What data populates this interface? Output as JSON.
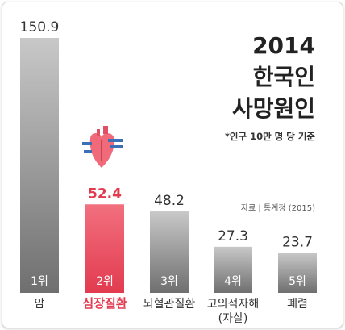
{
  "title_lines": [
    "2014",
    "한국인",
    "사망원인"
  ],
  "subtitle": "*인구 10만 명 당 기준",
  "source": "자료 | 통계청 (2015)",
  "chart_data": {
    "type": "bar",
    "title": "2014 한국인 사망원인",
    "subtitle": "*인구 10만 명 당 기준",
    "source": "자료 | 통계청 (2015)",
    "categories": [
      {
        "name": "암",
        "name_line2": "",
        "rank": "1위"
      },
      {
        "name": "심장질환",
        "name_line2": "",
        "rank": "2위"
      },
      {
        "name": "뇌혈관질환",
        "name_line2": "",
        "rank": "3위"
      },
      {
        "name": "고의적자해",
        "name_line2": "(자살)",
        "rank": "4위"
      },
      {
        "name": "폐렴",
        "name_line2": "",
        "rank": "5위"
      }
    ],
    "values": [
      150.9,
      52.4,
      48.2,
      27.3,
      23.7
    ],
    "value_labels": [
      "150.9",
      "52.4",
      "48.2",
      "27.3",
      "23.7"
    ],
    "highlight_index": 1,
    "highlight_icon": "heart-icon",
    "colors": {
      "bar_top": "#c8c8c8",
      "bar_bottom": "#6f6f6f",
      "highlight_top": "#f2707f",
      "highlight_bottom": "#e23b4f",
      "rank_text": "#ffffff",
      "label_text": "#333333",
      "highlight_text": "#e23b4f"
    }
  }
}
